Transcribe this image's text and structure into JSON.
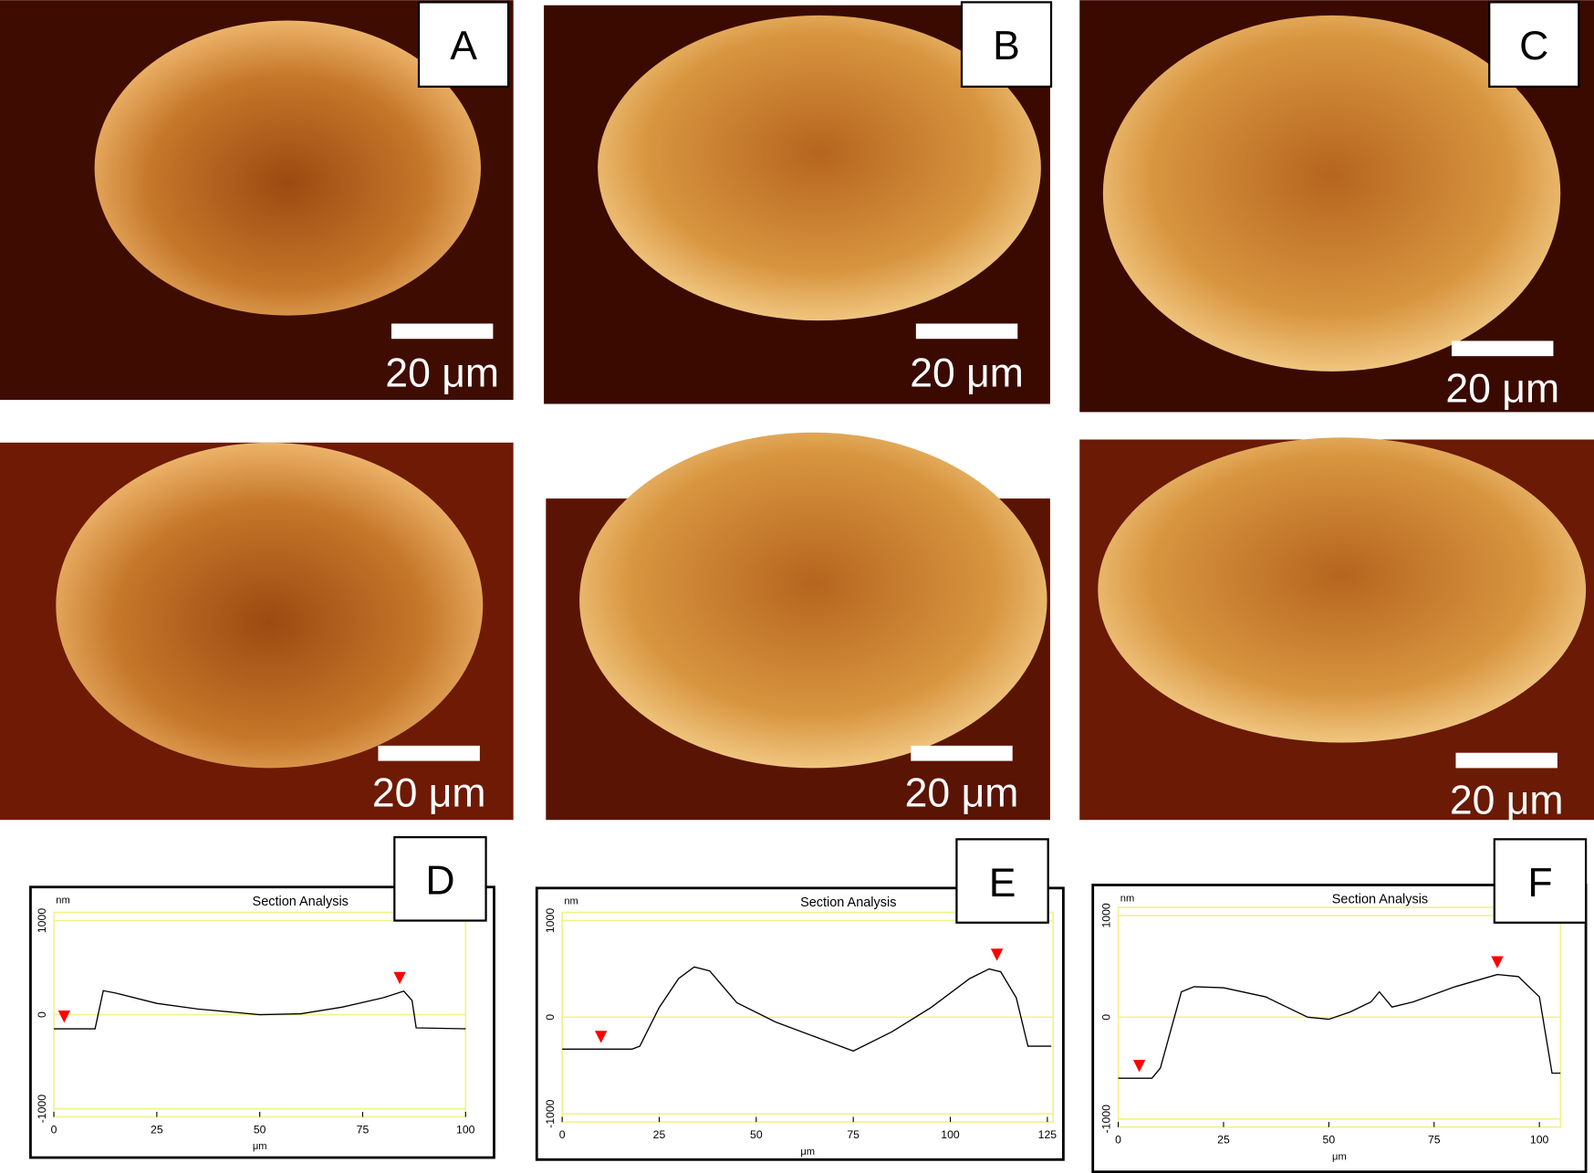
{
  "images": [
    {
      "label": "A",
      "scale_bar": "20 μm"
    },
    {
      "label": "B",
      "scale_bar": "20 μm"
    },
    {
      "label": "C",
      "scale_bar": "20 μm"
    },
    {
      "scale_bar": "20 μm"
    },
    {
      "scale_bar": "20 μm"
    },
    {
      "scale_bar": "20 μm"
    }
  ],
  "chart_data": [
    {
      "type": "line",
      "title": "Section Analysis",
      "panel_label": "D",
      "y_unit": "nm",
      "xlabel": "μm",
      "x": [
        0,
        10,
        12,
        15,
        25,
        35,
        50,
        60,
        70,
        80,
        85,
        87,
        88,
        100
      ],
      "values": [
        -150,
        -150,
        255,
        230,
        120,
        60,
        0,
        10,
        80,
        180,
        250,
        150,
        -140,
        -150
      ],
      "markers": [
        {
          "x": 2.5,
          "y": -150
        },
        {
          "x": 84,
          "y": 260
        }
      ],
      "xlim": [
        0,
        100
      ],
      "ylim": [
        -1000,
        1000
      ],
      "xticks": [
        0,
        25,
        50,
        75,
        100
      ],
      "yticks": [
        1000,
        0,
        -1000
      ],
      "color": "#000000",
      "marker_color": "#ff0000",
      "grid_color": "#f2f28a"
    },
    {
      "type": "line",
      "title": "Section Analysis",
      "panel_label": "E",
      "y_unit": "nm",
      "xlabel": "μm",
      "x": [
        0,
        18,
        20,
        25,
        30,
        34,
        38,
        45,
        55,
        65,
        75,
        85,
        95,
        105,
        110,
        113,
        117,
        120,
        126
      ],
      "values": [
        -330,
        -330,
        -300,
        100,
        400,
        520,
        480,
        150,
        -50,
        -200,
        -350,
        -150,
        100,
        400,
        500,
        470,
        200,
        -300,
        -300
      ],
      "markers": [
        {
          "x": 10,
          "y": -330
        },
        {
          "x": 112,
          "y": 520
        }
      ],
      "xlim": [
        0,
        126.5
      ],
      "ylim": [
        -1000,
        1000
      ],
      "xticks": [
        0,
        25,
        50,
        75,
        100,
        125
      ],
      "yticks": [
        1000,
        0,
        -1000
      ],
      "color": "#000000",
      "marker_color": "#ff0000",
      "grid_color": "#f2f28a"
    },
    {
      "type": "line",
      "title": "Section Analysis",
      "panel_label": "F",
      "y_unit": "nm",
      "xlabel": "μm",
      "x": [
        0,
        8,
        10,
        15,
        18,
        25,
        35,
        40,
        45,
        50,
        55,
        60,
        62,
        65,
        70,
        80,
        90,
        95,
        100,
        103,
        105
      ],
      "values": [
        -600,
        -600,
        -500,
        250,
        300,
        290,
        200,
        100,
        0,
        -20,
        50,
        150,
        250,
        100,
        150,
        300,
        420,
        400,
        200,
        -550,
        -550
      ],
      "markers": [
        {
          "x": 5,
          "y": -600
        },
        {
          "x": 90,
          "y": 420
        }
      ],
      "xlim": [
        0,
        105
      ],
      "ylim": [
        -1000,
        1000
      ],
      "xticks": [
        0,
        25,
        50,
        75,
        100
      ],
      "yticks": [
        1000,
        0,
        -1000
      ],
      "color": "#000000",
      "marker_color": "#ff0000",
      "grid_color": "#f2f28a"
    }
  ]
}
